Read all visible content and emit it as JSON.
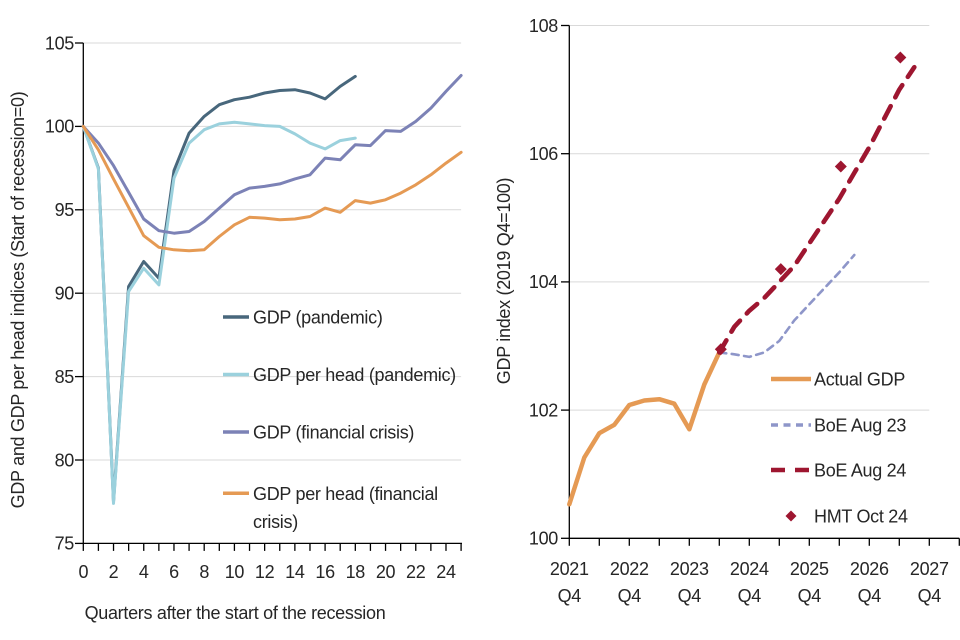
{
  "page": {
    "background": "#ffffff",
    "text_color": "#262626",
    "grid_color": "#d9d9d9",
    "axis_color": "#000000"
  },
  "chart_data": [
    {
      "id": "recession-comparison",
      "type": "line",
      "title": "",
      "ylabel": "GDP and GDP per head indices (Start of recession=0)",
      "xlabel": "Quarters after the start of the recession",
      "ylim": [
        75,
        105
      ],
      "yticks": [
        75,
        80,
        85,
        90,
        95,
        100,
        105
      ],
      "grid_values": [
        80,
        85,
        90,
        95,
        100,
        105
      ],
      "xlim": [
        0,
        25
      ],
      "x_major_labels": [
        {
          "x": 0,
          "lines": [
            "0"
          ]
        },
        {
          "x": 2,
          "lines": [
            "2"
          ]
        },
        {
          "x": 4,
          "lines": [
            "4"
          ]
        },
        {
          "x": 6,
          "lines": [
            "6"
          ]
        },
        {
          "x": 8,
          "lines": [
            "8"
          ]
        },
        {
          "x": 10,
          "lines": [
            "10"
          ]
        },
        {
          "x": 12,
          "lines": [
            "12"
          ]
        },
        {
          "x": 14,
          "lines": [
            "14"
          ]
        },
        {
          "x": 16,
          "lines": [
            "16"
          ]
        },
        {
          "x": 18,
          "lines": [
            "18"
          ]
        },
        {
          "x": 20,
          "lines": [
            "20"
          ]
        },
        {
          "x": 22,
          "lines": [
            "22"
          ]
        },
        {
          "x": 24,
          "lines": [
            "24"
          ]
        }
      ],
      "series": [
        {
          "name": "GDP (pandemic)",
          "color": "#48677c",
          "width": 3,
          "x0": 0,
          "dx": 1,
          "values": [
            100,
            97.5,
            77.5,
            90.4,
            91.9,
            90.9,
            97.35,
            99.6,
            100.6,
            101.3,
            101.6,
            101.75,
            102,
            102.15,
            102.2,
            102,
            101.65,
            102.4,
            103
          ]
        },
        {
          "name": "GDP per head (pandemic)",
          "color": "#9bd1dd",
          "width": 3,
          "x0": 0,
          "dx": 1,
          "values": [
            100,
            97.45,
            77.4,
            90.1,
            91.5,
            90.5,
            96.9,
            99,
            99.8,
            100.15,
            100.25,
            100.15,
            100.05,
            100,
            99.55,
            99,
            98.65,
            99.15,
            99.3
          ]
        },
        {
          "name": "GDP (financial crisis)",
          "color": "#7c82b6",
          "width": 3,
          "x0": 0,
          "dx": 1,
          "values": [
            100,
            99,
            97.65,
            96.05,
            94.45,
            93.75,
            93.6,
            93.7,
            94.3,
            95.1,
            95.9,
            96.3,
            96.4,
            96.55,
            96.85,
            97.1,
            98.1,
            98,
            98.9,
            98.85,
            99.75,
            99.7,
            100.3,
            101.1,
            102.1,
            103.05
          ]
        },
        {
          "name": "GDP per head (financial crisis)",
          "color": "#e59a54",
          "width": 3,
          "x0": 0,
          "dx": 1,
          "values": [
            100,
            98.6,
            96.85,
            95.15,
            93.45,
            92.75,
            92.6,
            92.55,
            92.6,
            93.4,
            94.1,
            94.55,
            94.5,
            94.4,
            94.45,
            94.6,
            95.1,
            94.85,
            95.55,
            95.4,
            95.6,
            96,
            96.5,
            97.1,
            97.8,
            98.45
          ]
        }
      ],
      "legend": [
        {
          "series": 0,
          "lines": [
            "GDP (pandemic)"
          ]
        },
        {
          "series": 1,
          "lines": [
            "GDP per head (pandemic)"
          ]
        },
        {
          "series": 2,
          "lines": [
            "GDP (financial crisis)"
          ]
        },
        {
          "series": 3,
          "lines": [
            "GDP per head (financial",
            "crisis)"
          ]
        }
      ]
    },
    {
      "id": "gdp-forecasts",
      "type": "line",
      "title": "",
      "ylabel": "GDP index (2019 Q4=100)",
      "xlabel": "",
      "ylim": [
        100,
        108
      ],
      "yticks": [
        100,
        102,
        104,
        106,
        108
      ],
      "grid_values": [
        102,
        104,
        106,
        108
      ],
      "xlim": [
        0,
        24
      ],
      "x_major_labels": [
        {
          "x": 0,
          "lines": [
            "2021",
            "Q4"
          ]
        },
        {
          "x": 4,
          "lines": [
            "2022",
            "Q4"
          ]
        },
        {
          "x": 8,
          "lines": [
            "2023",
            "Q4"
          ]
        },
        {
          "x": 12,
          "lines": [
            "2024",
            "Q4"
          ]
        },
        {
          "x": 16,
          "lines": [
            "2025",
            "Q4"
          ]
        },
        {
          "x": 20,
          "lines": [
            "2026",
            "Q4"
          ]
        },
        {
          "x": 24,
          "lines": [
            "2027",
            "Q4"
          ]
        }
      ],
      "series": [
        {
          "name": "Actual GDP",
          "color": "#e59a54",
          "width": 4.5,
          "x0": 0,
          "dx": 1,
          "values": [
            100.53,
            101.26,
            101.64,
            101.77,
            102.08,
            102.15,
            102.17,
            102.1,
            101.7,
            102.4,
            102.9
          ]
        },
        {
          "name": "BoE Aug 23",
          "color": "#8e96c9",
          "width": 2.6,
          "dash": [
            7,
            5.5
          ],
          "x0": 10,
          "dx": 1,
          "values": [
            102.9,
            102.87,
            102.83,
            102.9,
            103.08,
            103.4,
            103.65,
            103.9,
            104.15,
            104.42
          ]
        },
        {
          "name": "BoE Aug 24",
          "color": "#9e1630",
          "width": 4.6,
          "dash": [
            14,
            10
          ],
          "x0": 10,
          "dx": 1,
          "values": [
            102.9,
            103.3,
            103.55,
            103.75,
            104,
            104.25,
            104.6,
            104.95,
            105.3,
            105.7,
            106.1,
            106.55,
            107,
            107.35
          ]
        },
        {
          "name": "HMT Oct 24",
          "color": "#9e1630",
          "marker": "diamond",
          "points": [
            [
              10.1,
              102.95
            ],
            [
              14.1,
              104.2
            ],
            [
              18.1,
              105.8
            ],
            [
              22.07,
              107.5
            ]
          ]
        }
      ],
      "legend": [
        {
          "series": 0,
          "lines": [
            "Actual GDP"
          ]
        },
        {
          "series": 1,
          "lines": [
            "BoE Aug 23"
          ]
        },
        {
          "series": 2,
          "lines": [
            "BoE Aug 24"
          ]
        },
        {
          "series": 3,
          "lines": [
            "HMT Oct 24"
          ]
        }
      ]
    }
  ]
}
